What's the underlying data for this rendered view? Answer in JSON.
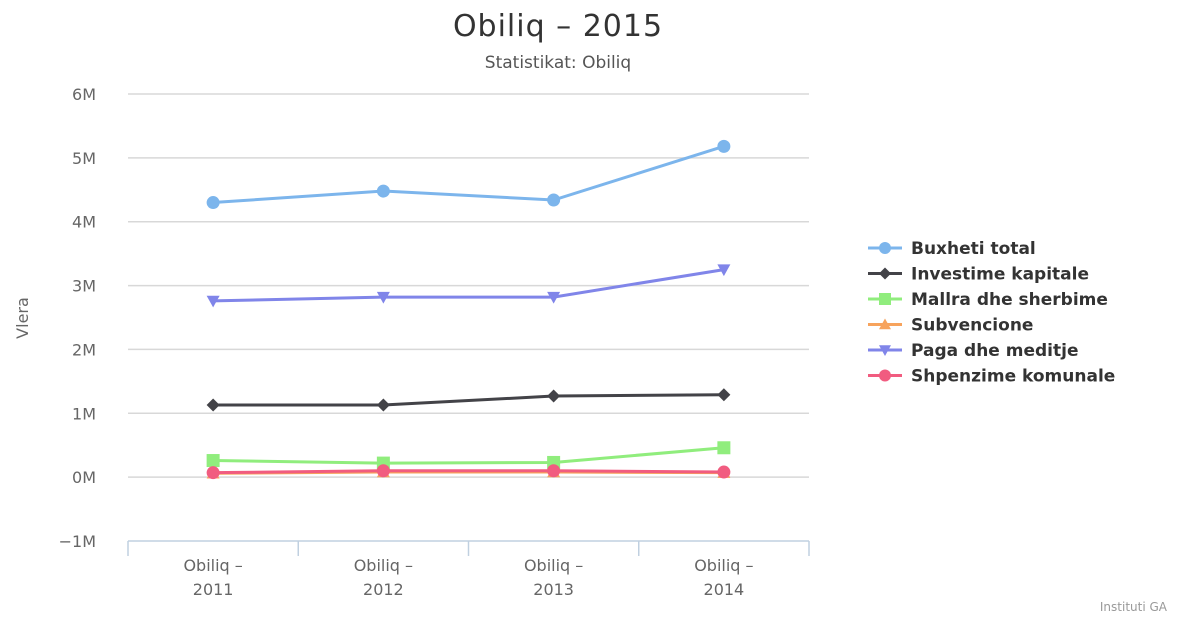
{
  "chart_data": {
    "type": "line",
    "title": "Obiliq – 2015",
    "subtitle": "Statistikat: Obiliq",
    "ylabel": "Vlera",
    "xlabel": "",
    "categories": [
      [
        "Obiliq –",
        "2011"
      ],
      [
        "Obiliq –",
        "2012"
      ],
      [
        "Obiliq –",
        "2013"
      ],
      [
        "Obiliq –",
        "2014"
      ]
    ],
    "ylim": [
      -1000000,
      6000000
    ],
    "yticks": [
      {
        "value": -1000000,
        "label": "−1M"
      },
      {
        "value": 0,
        "label": "0M"
      },
      {
        "value": 1000000,
        "label": "1M"
      },
      {
        "value": 2000000,
        "label": "2M"
      },
      {
        "value": 3000000,
        "label": "3M"
      },
      {
        "value": 4000000,
        "label": "4M"
      },
      {
        "value": 5000000,
        "label": "5M"
      },
      {
        "value": 6000000,
        "label": "6M"
      }
    ],
    "grid": true,
    "legend_position": "right",
    "series": [
      {
        "name": "Buxheti total",
        "color": "#7cb5ec",
        "marker": "circle",
        "values": [
          4300000,
          4480000,
          4340000,
          5180000
        ]
      },
      {
        "name": "Investime kapitale",
        "color": "#434348",
        "marker": "diamond",
        "values": [
          1130000,
          1130000,
          1270000,
          1290000
        ]
      },
      {
        "name": "Mallra dhe sherbime",
        "color": "#90ed7d",
        "marker": "square",
        "values": [
          260000,
          220000,
          230000,
          460000
        ]
      },
      {
        "name": "Subvencione",
        "color": "#f7a35c",
        "marker": "triangle",
        "values": [
          60000,
          80000,
          80000,
          70000
        ]
      },
      {
        "name": "Paga dhe meditje",
        "color": "#8085e9",
        "marker": "triangle-down",
        "values": [
          2760000,
          2820000,
          2820000,
          3250000
        ]
      },
      {
        "name": "Shpenzime komunale",
        "color": "#f15c80",
        "marker": "circle",
        "values": [
          70000,
          100000,
          100000,
          80000
        ]
      }
    ]
  },
  "credit": "Instituti GA"
}
